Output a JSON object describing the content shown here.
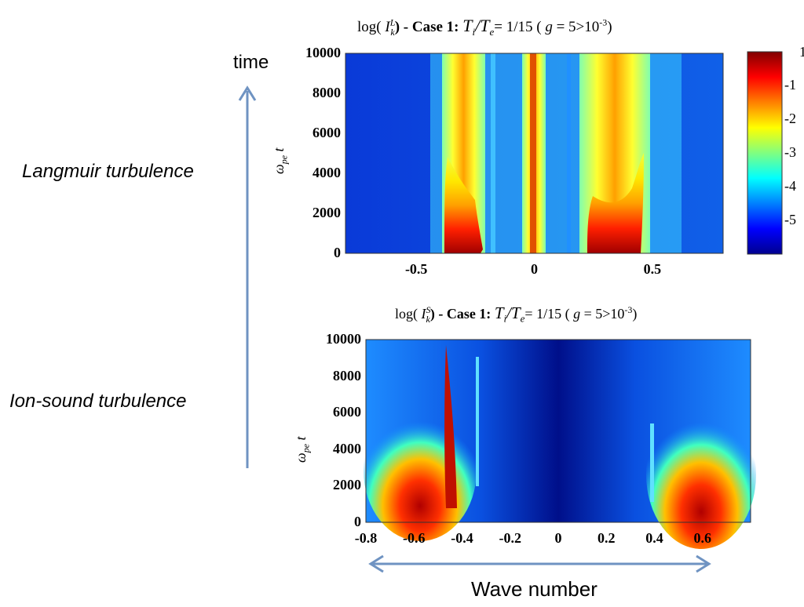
{
  "annotations": {
    "time_label": "time",
    "langmuir_label": "Langmuir turbulence",
    "ion_sound_label": "Ion-sound turbulence",
    "wave_number_label": "Wave number",
    "arrow_color": "#6f93c2"
  },
  "chart_data": [
    {
      "type": "heatmap",
      "title_prefix": "log(",
      "title_symbol": "I",
      "title_superscript": "L",
      "title_subscript": "k",
      "title_case": ") -  Case 1:",
      "title_ratio": "T",
      "title_ratio_i": "i",
      "title_slash": "/T",
      "title_ratio_e": "e",
      "title_value": "= 1/15 (",
      "title_g": "g",
      "title_g_value": "= 5>10",
      "title_g_exp": "-3",
      "title_close": ")",
      "xlabel": "",
      "ylabel": "ω_pe t",
      "ylabel_main": "ω",
      "ylabel_sub": "pe",
      "ylabel_t": "t",
      "xlim": [
        -0.8,
        0.8
      ],
      "ylim": [
        0,
        10000
      ],
      "x_ticks": [
        -0.5,
        0,
        0.5
      ],
      "x_tick_labels": [
        "-0.5",
        "0",
        "0.5"
      ],
      "y_ticks": [
        0,
        2000,
        4000,
        6000,
        8000,
        10000
      ],
      "y_tick_labels": [
        "0",
        "2000",
        "4000",
        "6000",
        "8000",
        "10000"
      ],
      "colorbar": {
        "ticks": [
          -1,
          -2,
          -3,
          -4,
          -5
        ],
        "tick_labels": [
          "-1",
          "-2",
          "-3",
          "-4",
          "-5"
        ],
        "top_label": "1",
        "range": [
          -6,
          0
        ]
      }
    },
    {
      "type": "heatmap",
      "title_prefix": "log(",
      "title_symbol": "I",
      "title_superscript": "S",
      "title_subscript": "k",
      "title_case": ") -  Case 1:",
      "title_ratio": "T",
      "title_ratio_i": "i",
      "title_slash": "/T",
      "title_ratio_e": "e",
      "title_value": "= 1/15 (",
      "title_g": "g",
      "title_g_value": "= 5>10",
      "title_g_exp": "-3",
      "title_close": ")",
      "xlabel": "Wave number",
      "ylabel": "ω_pe t",
      "ylabel_main": "ω",
      "ylabel_sub": "pe",
      "ylabel_t": "t",
      "xlim": [
        -0.8,
        0.8
      ],
      "ylim": [
        0,
        10000
      ],
      "x_ticks": [
        -0.8,
        -0.6,
        -0.4,
        -0.2,
        0,
        0.2,
        0.4,
        0.6
      ],
      "x_tick_labels": [
        "-0.8",
        "-0.6",
        "-0.4",
        "-0.2",
        "0",
        "0.2",
        "0.4",
        "0.6"
      ],
      "y_ticks": [
        0,
        2000,
        4000,
        6000,
        8000,
        10000
      ],
      "y_tick_labels": [
        "0",
        "2000",
        "4000",
        "6000",
        "8000",
        "10000"
      ]
    }
  ]
}
